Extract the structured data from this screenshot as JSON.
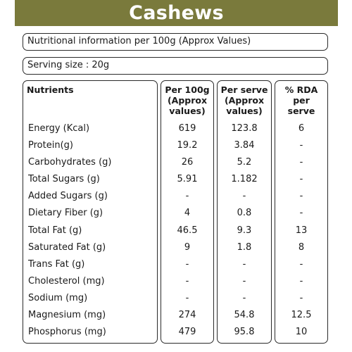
{
  "title": "Cashews",
  "info_line": "Nutritional information per 100g (Approx Values)",
  "serving_line": "Serving size : 20g",
  "headers": {
    "nutrients": "Nutrients",
    "per100": "Per 100g\n(Approx\nvalues)",
    "perserve": "Per serve\n(Approx\nvalues)",
    "rda": "% RDA\nper\nserve"
  },
  "rows": [
    {
      "name": "Energy (Kcal)",
      "per100": "619",
      "perserve": "123.8",
      "rda": "6"
    },
    {
      "name": "Protein(g)",
      "per100": "19.2",
      "perserve": "3.84",
      "rda": "-"
    },
    {
      "name": "Carbohydrates (g)",
      "per100": "26",
      "perserve": "5.2",
      "rda": "-"
    },
    {
      "name": "Total Sugars (g)",
      "per100": "5.91",
      "perserve": "1.182",
      "rda": "-"
    },
    {
      "name": "Added Sugars (g)",
      "per100": "-",
      "perserve": "-",
      "rda": "-"
    },
    {
      "name": "Dietary Fiber (g)",
      "per100": "4",
      "perserve": "0.8",
      "rda": "-"
    },
    {
      "name": "Total Fat (g)",
      "per100": "46.5",
      "perserve": "9.3",
      "rda": "13"
    },
    {
      "name": "Saturated Fat (g)",
      "per100": "9",
      "perserve": "1.8",
      "rda": "8"
    },
    {
      "name": "Trans Fat (g)",
      "per100": "-",
      "perserve": "-",
      "rda": "-"
    },
    {
      "name": "Cholesterol (mg)",
      "per100": "-",
      "perserve": "-",
      "rda": "-"
    },
    {
      "name": "Sodium (mg)",
      "per100": "-",
      "perserve": "-",
      "rda": "-"
    },
    {
      "name": "Magnesium (mg)",
      "per100": "274",
      "perserve": "54.8",
      "rda": "12.5"
    },
    {
      "name": "Phosphorus (mg)",
      "per100": "479",
      "perserve": "95.8",
      "rda": "10"
    }
  ],
  "colors": {
    "title_bar": "#7a7a3c",
    "border": "#2a2a2a"
  }
}
